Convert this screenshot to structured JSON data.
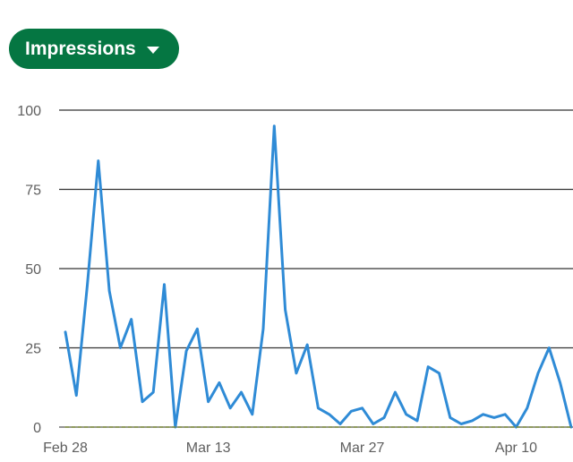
{
  "metric_selector": {
    "label": "Impressions",
    "icon": "caret-down-icon",
    "background": "#057642"
  },
  "chart_data": {
    "type": "line",
    "title": "",
    "xlabel": "",
    "ylabel": "",
    "ylim": [
      0,
      100
    ],
    "y_ticks": [
      0,
      25,
      50,
      75,
      100
    ],
    "grid": true,
    "x_ticks": [
      {
        "label": "Feb 28",
        "index": 0
      },
      {
        "label": "Mar 13",
        "index": 13
      },
      {
        "label": "Mar 27",
        "index": 27
      },
      {
        "label": "Apr 10",
        "index": 41
      }
    ],
    "x_start": "Feb 28",
    "series": [
      {
        "color": "#2f8bd6",
        "values": [
          30,
          10,
          45,
          84,
          43,
          25,
          34,
          8,
          11,
          45,
          0,
          24,
          31,
          8,
          14,
          6,
          11,
          4,
          31,
          95,
          37,
          17,
          26,
          6,
          4,
          1,
          5,
          6,
          1,
          3,
          11,
          4,
          2,
          19,
          17,
          3,
          1,
          2,
          4,
          3,
          4,
          0,
          6,
          17,
          25,
          14,
          0
        ]
      },
      {
        "color": "#7a8a3a",
        "style": "dashed",
        "values": [
          0,
          0,
          0,
          0,
          0,
          0,
          0,
          0,
          0,
          0,
          0,
          0,
          0,
          0,
          0,
          0,
          0,
          0,
          0,
          0,
          0,
          0,
          0,
          0,
          0,
          0,
          0,
          0,
          0,
          0,
          0,
          0,
          0,
          0,
          0,
          0,
          0,
          0,
          0,
          0,
          0,
          0,
          0,
          0,
          0,
          0,
          0
        ]
      }
    ]
  }
}
